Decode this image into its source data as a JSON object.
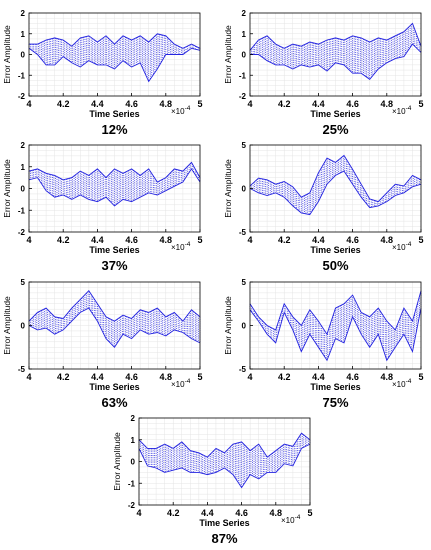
{
  "figure": {
    "xlabel": "Time Series",
    "ylabel": "Error Amplitude",
    "x_multiplier": "×10",
    "x_multiplier_exp": "-4"
  },
  "colors": {
    "signal": "#2424e0",
    "grid": "#e4e4e4",
    "axis": "#000000"
  },
  "chart_data": [
    {
      "type": "line",
      "caption": "12%",
      "xlim": [
        4,
        5
      ],
      "ylim": [
        -2,
        2
      ],
      "xticks": [
        4,
        4.2,
        4.4,
        4.6,
        4.8,
        5
      ],
      "xtick_labels": [
        "4",
        "4.2",
        "4.4",
        "4.6",
        "4.8",
        "5"
      ],
      "yticks": [
        -2,
        -1,
        0,
        1,
        2
      ],
      "ytick_labels": [
        "-2",
        "-1",
        "0",
        "1",
        "2"
      ],
      "series": [
        {
          "x": [
            4.0,
            4.05,
            4.1,
            4.15,
            4.2,
            4.25,
            4.3,
            4.35,
            4.4,
            4.45,
            4.5,
            4.55,
            4.6,
            4.65,
            4.7,
            4.75,
            4.8,
            4.85,
            4.9,
            4.95,
            5.0
          ],
          "upper": [
            0.5,
            0.5,
            0.7,
            0.8,
            0.7,
            0.4,
            0.8,
            0.9,
            0.6,
            0.9,
            0.5,
            0.9,
            0.7,
            0.9,
            0.6,
            1.0,
            0.9,
            0.5,
            0.3,
            0.5,
            0.3
          ],
          "lower": [
            0.3,
            0.0,
            -0.5,
            -0.5,
            -0.1,
            -0.4,
            -0.6,
            -0.3,
            -0.5,
            -0.5,
            -0.7,
            -0.3,
            -0.6,
            -0.4,
            -1.3,
            -0.7,
            0.0,
            0.0,
            0.0,
            0.3,
            0.2
          ]
        }
      ]
    },
    {
      "type": "line",
      "caption": "25%",
      "xlim": [
        4,
        5
      ],
      "ylim": [
        -2,
        2
      ],
      "xticks": [
        4,
        4.2,
        4.4,
        4.6,
        4.8,
        5
      ],
      "xtick_labels": [
        "4",
        "4.2",
        "4.4",
        "4.6",
        "4.8",
        "5"
      ],
      "yticks": [
        -2,
        -1,
        0,
        1,
        2
      ],
      "ytick_labels": [
        "-2",
        "-1",
        "0",
        "1",
        "2"
      ],
      "series": [
        {
          "x": [
            4.0,
            4.05,
            4.1,
            4.15,
            4.2,
            4.25,
            4.3,
            4.35,
            4.4,
            4.45,
            4.5,
            4.55,
            4.6,
            4.65,
            4.7,
            4.75,
            4.8,
            4.85,
            4.9,
            4.95,
            5.0
          ],
          "upper": [
            0.2,
            0.7,
            0.9,
            0.5,
            0.3,
            0.5,
            0.4,
            0.6,
            0.5,
            0.7,
            0.8,
            0.7,
            0.9,
            0.8,
            0.6,
            0.8,
            0.7,
            0.9,
            1.1,
            1.5,
            0.4
          ],
          "lower": [
            0.0,
            0.0,
            -0.3,
            -0.5,
            -0.5,
            -0.7,
            -0.5,
            -0.6,
            -0.5,
            -0.8,
            -0.4,
            -0.5,
            -0.9,
            -0.9,
            -1.2,
            -0.7,
            -0.4,
            -0.2,
            -0.1,
            0.5,
            0.1
          ]
        }
      ]
    },
    {
      "type": "line",
      "caption": "37%",
      "xlim": [
        4,
        5
      ],
      "ylim": [
        -2,
        2
      ],
      "xticks": [
        4,
        4.2,
        4.4,
        4.6,
        4.8,
        5
      ],
      "xtick_labels": [
        "4",
        "4.2",
        "4.4",
        "4.6",
        "4.8",
        "5"
      ],
      "yticks": [
        -2,
        -1,
        0,
        1,
        2
      ],
      "ytick_labels": [
        "-2",
        "-1",
        "0",
        "1",
        "2"
      ],
      "series": [
        {
          "x": [
            4.0,
            4.05,
            4.1,
            4.15,
            4.2,
            4.25,
            4.3,
            4.35,
            4.4,
            4.45,
            4.5,
            4.55,
            4.6,
            4.65,
            4.7,
            4.75,
            4.8,
            4.85,
            4.9,
            4.95,
            5.0
          ],
          "upper": [
            0.8,
            0.9,
            0.7,
            0.6,
            0.4,
            0.5,
            0.8,
            0.6,
            0.9,
            0.5,
            0.9,
            0.7,
            0.9,
            0.6,
            0.9,
            0.3,
            0.5,
            0.9,
            0.8,
            1.2,
            0.5
          ],
          "lower": [
            0.4,
            0.5,
            -0.1,
            -0.4,
            -0.3,
            -0.5,
            -0.3,
            -0.5,
            -0.6,
            -0.4,
            -0.8,
            -0.5,
            -0.6,
            -0.4,
            -0.2,
            -0.3,
            -0.1,
            0.1,
            0.3,
            0.9,
            0.3
          ]
        }
      ]
    },
    {
      "type": "line",
      "caption": "50%",
      "xlim": [
        4,
        5
      ],
      "ylim": [
        -5,
        5
      ],
      "xticks": [
        4,
        4.2,
        4.4,
        4.6,
        4.8,
        5
      ],
      "xtick_labels": [
        "4",
        "4.2",
        "4.4",
        "4.6",
        "4.8",
        "5"
      ],
      "yticks": [
        -5,
        0,
        5
      ],
      "ytick_labels": [
        "-5",
        "0",
        "5"
      ],
      "series": [
        {
          "x": [
            4.0,
            4.05,
            4.1,
            4.15,
            4.2,
            4.25,
            4.3,
            4.35,
            4.4,
            4.45,
            4.5,
            4.55,
            4.6,
            4.65,
            4.7,
            4.75,
            4.8,
            4.85,
            4.9,
            4.95,
            5.0
          ],
          "upper": [
            0.3,
            1.2,
            1.0,
            0.5,
            0.8,
            0.2,
            -1.0,
            -0.5,
            1.8,
            3.5,
            3.0,
            3.8,
            2.2,
            0.5,
            -1.2,
            -1.5,
            -0.5,
            0.5,
            0.3,
            1.5,
            1.0
          ],
          "lower": [
            0.0,
            -0.5,
            -0.8,
            -0.5,
            -1.0,
            -2.0,
            -2.8,
            -3.0,
            -1.5,
            0.5,
            1.5,
            2.0,
            0.5,
            -1.0,
            -2.2,
            -2.0,
            -1.5,
            -0.8,
            -0.5,
            0.2,
            0.5
          ]
        }
      ]
    },
    {
      "type": "line",
      "caption": "63%",
      "xlim": [
        4,
        5
      ],
      "ylim": [
        -5,
        5
      ],
      "xticks": [
        4,
        4.2,
        4.4,
        4.6,
        4.8,
        5
      ],
      "xtick_labels": [
        "4",
        "4.2",
        "4.4",
        "4.6",
        "4.8",
        "5"
      ],
      "yticks": [
        -5,
        0,
        5
      ],
      "ytick_labels": [
        "-5",
        "0",
        "5"
      ],
      "series": [
        {
          "x": [
            4.0,
            4.05,
            4.1,
            4.15,
            4.2,
            4.25,
            4.3,
            4.35,
            4.4,
            4.45,
            4.5,
            4.55,
            4.6,
            4.65,
            4.7,
            4.75,
            4.8,
            4.85,
            4.9,
            4.95,
            5.0
          ],
          "upper": [
            0.5,
            1.5,
            2.0,
            1.0,
            0.8,
            2.0,
            3.0,
            4.0,
            2.5,
            1.0,
            0.5,
            1.2,
            0.8,
            1.8,
            1.5,
            2.0,
            1.0,
            1.5,
            0.5,
            1.8,
            1.0
          ],
          "lower": [
            0.0,
            -0.5,
            -0.3,
            -1.0,
            -0.5,
            0.5,
            1.5,
            2.0,
            0.5,
            -1.5,
            -2.5,
            -1.0,
            -1.5,
            -0.5,
            -1.0,
            -0.8,
            -1.2,
            -0.5,
            -0.8,
            -1.5,
            -2.0
          ]
        }
      ]
    },
    {
      "type": "line",
      "caption": "75%",
      "xlim": [
        4,
        5
      ],
      "ylim": [
        -5,
        5
      ],
      "xticks": [
        4,
        4.2,
        4.4,
        4.6,
        4.8,
        5
      ],
      "xtick_labels": [
        "4",
        "4.2",
        "4.4",
        "4.6",
        "4.8",
        "5"
      ],
      "yticks": [
        -5,
        0,
        5
      ],
      "ytick_labels": [
        "-5",
        "0",
        "5"
      ],
      "series": [
        {
          "x": [
            4.0,
            4.05,
            4.1,
            4.15,
            4.2,
            4.25,
            4.3,
            4.35,
            4.4,
            4.45,
            4.5,
            4.55,
            4.6,
            4.65,
            4.7,
            4.75,
            4.8,
            4.85,
            4.9,
            4.95,
            5.0
          ],
          "upper": [
            2.5,
            1.0,
            0.0,
            -0.5,
            2.5,
            1.0,
            0.0,
            1.8,
            0.5,
            -1.0,
            2.0,
            2.5,
            3.5,
            1.5,
            1.0,
            2.0,
            0.5,
            -0.5,
            2.0,
            0.5,
            4.0
          ],
          "lower": [
            1.8,
            0.5,
            -1.0,
            -2.0,
            1.5,
            -0.5,
            -3.0,
            -1.0,
            -2.5,
            -4.0,
            -1.5,
            -2.0,
            1.0,
            -1.0,
            -2.5,
            -1.0,
            -4.0,
            -2.5,
            -1.0,
            -3.0,
            2.0
          ]
        }
      ]
    },
    {
      "type": "line",
      "caption": "87%",
      "xlim": [
        4,
        5
      ],
      "ylim": [
        -2,
        2
      ],
      "xticks": [
        4,
        4.2,
        4.4,
        4.6,
        4.8,
        5
      ],
      "xtick_labels": [
        "4",
        "4.2",
        "4.4",
        "4.6",
        "4.8",
        "5"
      ],
      "yticks": [
        -2,
        -1,
        0,
        1,
        2
      ],
      "ytick_labels": [
        "-2",
        "-1",
        "0",
        "1",
        "2"
      ],
      "series": [
        {
          "x": [
            4.0,
            4.05,
            4.1,
            4.15,
            4.2,
            4.25,
            4.3,
            4.35,
            4.4,
            4.45,
            4.5,
            4.55,
            4.6,
            4.65,
            4.7,
            4.75,
            4.8,
            4.85,
            4.9,
            4.95,
            5.0
          ],
          "upper": [
            1.0,
            0.6,
            0.6,
            0.8,
            0.6,
            0.9,
            0.5,
            0.4,
            0.2,
            0.6,
            0.4,
            0.8,
            0.9,
            0.5,
            0.8,
            0.2,
            0.5,
            0.8,
            0.7,
            1.3,
            1.0
          ],
          "lower": [
            0.6,
            -0.2,
            -0.3,
            -0.5,
            -0.4,
            -0.3,
            -0.5,
            -0.5,
            -0.6,
            -0.5,
            -0.3,
            -0.6,
            -1.2,
            -0.6,
            -0.8,
            -0.5,
            -0.5,
            -0.1,
            -0.2,
            0.6,
            0.8
          ]
        }
      ]
    }
  ]
}
